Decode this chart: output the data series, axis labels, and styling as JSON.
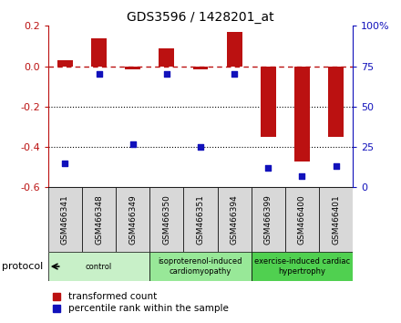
{
  "title": "GDS3596 / 1428201_at",
  "samples": [
    "GSM466341",
    "GSM466348",
    "GSM466349",
    "GSM466350",
    "GSM466351",
    "GSM466394",
    "GSM466399",
    "GSM466400",
    "GSM466401"
  ],
  "red_values": [
    0.03,
    0.14,
    -0.015,
    0.09,
    -0.015,
    0.17,
    -0.35,
    -0.47,
    -0.35
  ],
  "blue_pct": [
    15,
    70,
    27,
    70,
    25,
    70,
    12,
    7,
    13
  ],
  "groups": [
    {
      "label": "control",
      "start": 0,
      "end": 3,
      "color": "#c8f0c8"
    },
    {
      "label": "isoproterenol-induced\ncardiomyopathy",
      "start": 3,
      "end": 6,
      "color": "#98e898"
    },
    {
      "label": "exercise-induced cardiac\nhypertrophy",
      "start": 6,
      "end": 9,
      "color": "#50d050"
    }
  ],
  "ylim_left": [
    -0.6,
    0.2
  ],
  "ylim_right": [
    0,
    100
  ],
  "yticks_left": [
    -0.6,
    -0.4,
    -0.2,
    0.0,
    0.2
  ],
  "yticks_right": [
    0,
    25,
    50,
    75,
    100
  ],
  "red_color": "#bb1111",
  "blue_color": "#1111bb",
  "bg_color": "#ffffff",
  "legend_items": [
    "transformed count",
    "percentile rank within the sample"
  ]
}
